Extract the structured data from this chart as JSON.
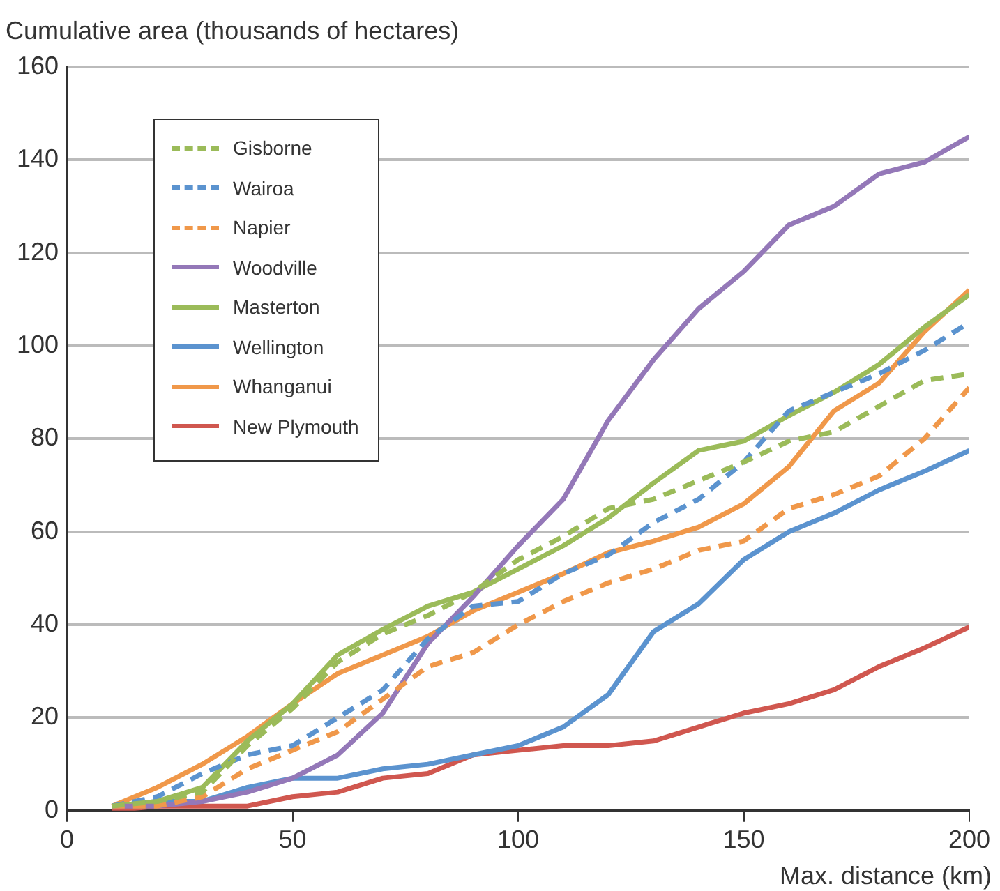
{
  "chart_data": {
    "type": "line",
    "ylabel": "Cumulative area (thousands of hectares)",
    "xlabel": "Max. distance (km)",
    "x": [
      10,
      20,
      30,
      40,
      50,
      60,
      70,
      80,
      90,
      100,
      110,
      120,
      130,
      140,
      150,
      160,
      170,
      180,
      190,
      200
    ],
    "xlim": [
      0,
      200
    ],
    "xticks": [
      0,
      50,
      100,
      150,
      200
    ],
    "ylim": [
      0,
      160
    ],
    "yticks": [
      0,
      20,
      40,
      60,
      80,
      100,
      120,
      140,
      160
    ],
    "grid": "y",
    "legend": "top left",
    "marker": "none",
    "series": [
      {
        "name": "Gisborne",
        "color": "#9bbb59",
        "line_style": "dashed",
        "values": [
          1,
          2,
          4,
          14,
          22,
          32,
          38,
          42,
          47,
          54,
          59,
          65,
          67,
          71,
          75,
          79.5,
          81.5,
          87,
          92.5,
          94
        ]
      },
      {
        "name": "Wairoa",
        "color": "#5b93cf",
        "line_style": "dashed",
        "values": [
          1,
          3,
          8,
          12,
          14,
          20,
          26,
          37,
          44,
          45,
          51,
          55,
          62,
          67,
          75,
          86,
          90,
          94,
          99,
          105
        ]
      },
      {
        "name": "Napier",
        "color": "#f0984a",
        "line_style": "dashed",
        "values": [
          1,
          1,
          3,
          9,
          13,
          17,
          24,
          31,
          34,
          40,
          45,
          49,
          52,
          56,
          58,
          65,
          68,
          72,
          80,
          91
        ]
      },
      {
        "name": "Woodville",
        "color": "#9478b8",
        "line_style": "solid",
        "values": [
          1,
          1,
          2,
          4,
          7,
          12,
          21,
          36,
          46,
          57,
          67,
          84,
          97,
          108,
          116,
          126,
          130,
          137,
          139.5,
          145
        ]
      },
      {
        "name": "Masterton",
        "color": "#9bbb59",
        "line_style": "solid",
        "values": [
          1,
          2,
          5,
          15,
          23,
          33.5,
          39,
          44,
          47,
          52,
          57,
          63,
          70.5,
          77.5,
          79.5,
          85,
          90,
          96,
          104,
          111
        ]
      },
      {
        "name": "Wellington",
        "color": "#5b93cf",
        "line_style": "solid",
        "values": [
          1,
          2,
          2,
          5,
          7,
          7,
          9,
          10,
          12,
          14,
          18,
          25,
          38.5,
          44.5,
          54,
          60,
          64,
          69,
          73,
          77.5
        ]
      },
      {
        "name": "Whanganui",
        "color": "#f0984a",
        "line_style": "solid",
        "values": [
          1,
          5,
          10,
          16,
          23,
          29.5,
          33.5,
          37.5,
          43,
          47,
          51,
          55.5,
          58,
          61,
          66,
          74,
          86,
          92,
          103,
          112
        ]
      },
      {
        "name": "New Plymouth",
        "color": "#d0574f",
        "line_style": "solid",
        "values": [
          0,
          1,
          1,
          1,
          3,
          4,
          7,
          8,
          12,
          13,
          14,
          14,
          15,
          18,
          21,
          23,
          26,
          31,
          35,
          39.5
        ]
      }
    ]
  }
}
